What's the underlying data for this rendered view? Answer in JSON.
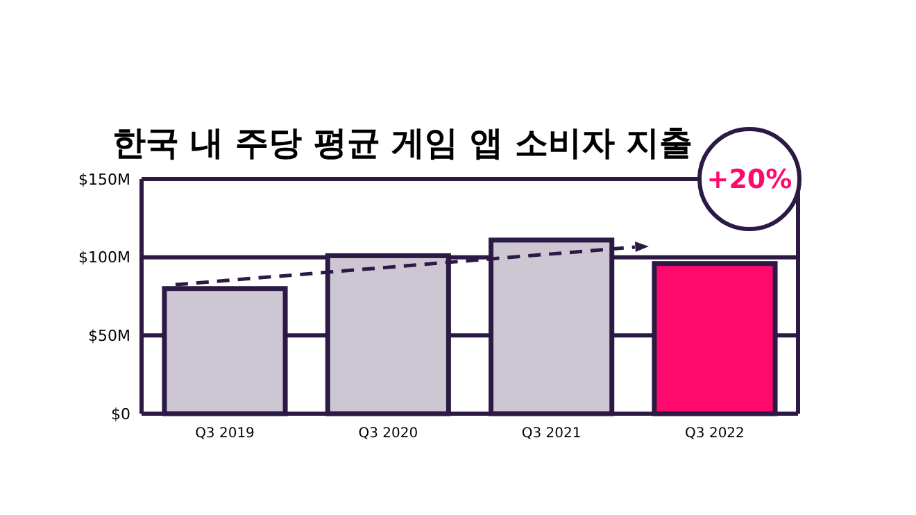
{
  "chart_data": {
    "type": "bar",
    "title": "한국 내 주당 평균 게임 앱 소비자 지출",
    "categories": [
      "Q3 2019",
      "Q3 2020",
      "Q3 2021",
      "Q3 2022"
    ],
    "values": [
      80,
      101,
      111,
      96
    ],
    "colors": [
      "#cdc6d3",
      "#cdc6d3",
      "#cdc6d3",
      "#ff0a6c"
    ],
    "ylim": [
      0,
      150
    ],
    "yticks": [
      {
        "value": 0,
        "label": "$0"
      },
      {
        "value": 50,
        "label": "$50M"
      },
      {
        "value": 100,
        "label": "$100M"
      },
      {
        "value": 150,
        "label": "$150M"
      }
    ],
    "grid": "y",
    "annotations": [
      "+20%"
    ]
  }
}
